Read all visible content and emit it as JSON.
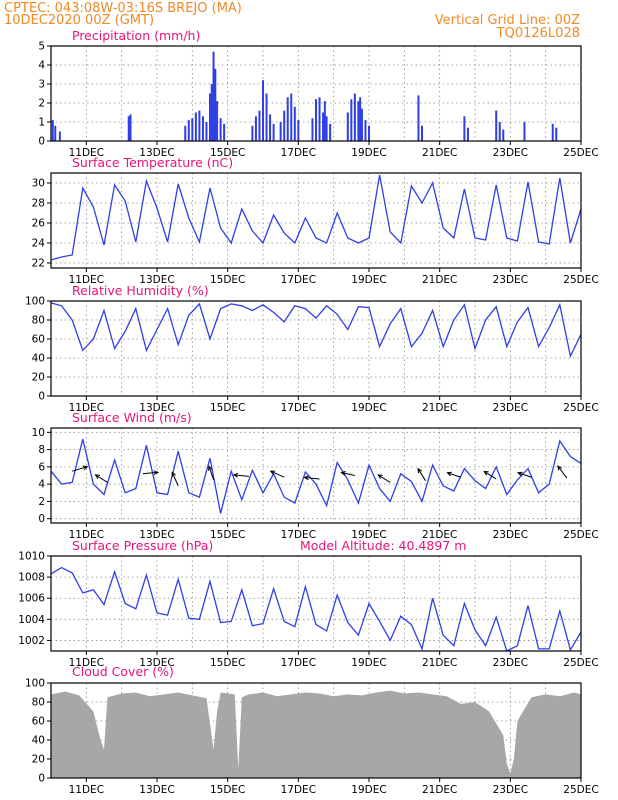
{
  "header": {
    "station": "CPTEC:  043:08W-03:16S  BREJO (MA)",
    "date": "10DEC2020 00Z (GMT)",
    "grid_note": "Vertical Grid Line: 00Z",
    "run_id": "TQ0126L028"
  },
  "x_axis": {
    "ticks": [
      "11DEC",
      "13DEC",
      "15DEC",
      "17DEC",
      "19DEC",
      "21DEC",
      "23DEC",
      "25DEC"
    ],
    "tick_days": [
      1,
      3,
      5,
      7,
      9,
      11,
      13,
      15
    ],
    "range_days": [
      0,
      15
    ]
  },
  "colors": {
    "series": "#2f3fe6",
    "cloud": "#a7a7a7",
    "title": "#e8147a",
    "header": "#f08a28"
  },
  "chart_data": [
    {
      "type": "bar",
      "title": "Precipitation (mm/h)",
      "ylim": [
        0,
        5
      ],
      "yticks": [
        "0",
        "1",
        "2",
        "3",
        "4",
        "5"
      ],
      "grid": true,
      "x_days": [
        0.05,
        0.12,
        0.25,
        2.2,
        2.25,
        3.8,
        3.9,
        4.0,
        4.1,
        4.2,
        4.3,
        4.4,
        4.5,
        4.55,
        4.6,
        4.65,
        4.7,
        4.8,
        4.9,
        5.7,
        5.8,
        5.9,
        6.0,
        6.1,
        6.2,
        6.3,
        6.5,
        6.6,
        6.7,
        6.8,
        6.9,
        7.0,
        7.4,
        7.5,
        7.6,
        7.7,
        7.75,
        7.8,
        7.9,
        8.4,
        8.5,
        8.6,
        8.7,
        8.75,
        8.8,
        8.9,
        9.0,
        10.4,
        10.5,
        11.7,
        11.8,
        12.6,
        12.7,
        12.8,
        13.4,
        14.2,
        14.3
      ],
      "values": [
        1.1,
        0.8,
        0.5,
        1.3,
        1.4,
        0.8,
        1.1,
        1.2,
        1.5,
        1.6,
        1.3,
        1.0,
        2.5,
        3.0,
        4.7,
        3.8,
        2.1,
        1.2,
        0.9,
        0.8,
        1.3,
        1.6,
        3.2,
        2.5,
        1.4,
        0.9,
        1.0,
        1.6,
        2.3,
        2.5,
        1.8,
        1.1,
        1.2,
        2.2,
        2.3,
        1.5,
        2.1,
        1.3,
        0.9,
        1.5,
        2.2,
        2.5,
        2.1,
        2.3,
        1.7,
        1.1,
        0.8,
        2.4,
        0.8,
        1.3,
        0.7,
        1.6,
        1.0,
        0.6,
        1.0,
        0.9,
        0.7
      ]
    },
    {
      "type": "line",
      "title": "Surface Temperature (nC)",
      "ylim": [
        21.5,
        31
      ],
      "yticks": [
        "22",
        "24",
        "26",
        "28",
        "30"
      ],
      "ytick_values": [
        22,
        24,
        26,
        28,
        30
      ],
      "grid": true,
      "x_days": [
        0,
        0.3,
        0.6,
        0.9,
        1.2,
        1.5,
        1.8,
        2.1,
        2.4,
        2.7,
        3.0,
        3.3,
        3.6,
        3.9,
        4.2,
        4.5,
        4.8,
        5.1,
        5.4,
        5.7,
        6.0,
        6.3,
        6.6,
        6.9,
        7.2,
        7.5,
        7.8,
        8.1,
        8.4,
        8.7,
        9.0,
        9.3,
        9.6,
        9.9,
        10.2,
        10.5,
        10.8,
        11.1,
        11.4,
        11.7,
        12.0,
        12.3,
        12.6,
        12.9,
        13.2,
        13.5,
        13.8,
        14.1,
        14.4,
        14.7,
        15.0
      ],
      "values": [
        22.3,
        22.6,
        22.8,
        29.5,
        27.6,
        23.8,
        29.8,
        28.2,
        24.1,
        30.2,
        27.5,
        24.1,
        29.9,
        26.5,
        24.1,
        29.5,
        25.5,
        24.0,
        27.4,
        25.2,
        24.0,
        26.8,
        25.0,
        24.0,
        26.5,
        24.5,
        24.0,
        27.0,
        24.5,
        24.0,
        24.5,
        30.8,
        25.1,
        24.0,
        29.7,
        28.0,
        30.0,
        25.5,
        24.5,
        29.4,
        24.5,
        24.3,
        29.8,
        24.5,
        24.2,
        30.1,
        24.1,
        23.9,
        30.5,
        24.0,
        27.4
      ]
    },
    {
      "type": "line",
      "title": "Relative Humidity (%)",
      "ylim": [
        0,
        100
      ],
      "yticks": [
        "0",
        "20",
        "40",
        "60",
        "80",
        "100"
      ],
      "ytick_values": [
        0,
        20,
        40,
        60,
        80,
        100
      ],
      "grid": true,
      "x_days": [
        0,
        0.3,
        0.6,
        0.9,
        1.2,
        1.5,
        1.8,
        2.1,
        2.4,
        2.7,
        3.0,
        3.3,
        3.6,
        3.9,
        4.2,
        4.5,
        4.8,
        5.1,
        5.4,
        5.7,
        6.0,
        6.3,
        6.6,
        6.9,
        7.2,
        7.5,
        7.8,
        8.1,
        8.4,
        8.7,
        9.0,
        9.3,
        9.6,
        9.9,
        10.2,
        10.5,
        10.8,
        11.1,
        11.4,
        11.7,
        12.0,
        12.3,
        12.6,
        12.9,
        13.2,
        13.5,
        13.8,
        14.1,
        14.4,
        14.7,
        15.0
      ],
      "values": [
        98,
        95,
        80,
        48,
        60,
        90,
        50,
        68,
        92,
        48,
        70,
        92,
        54,
        85,
        97,
        60,
        92,
        97,
        95,
        90,
        96,
        88,
        78,
        95,
        92,
        82,
        95,
        86,
        70,
        94,
        93,
        52,
        76,
        92,
        52,
        66,
        90,
        52,
        80,
        96,
        50,
        80,
        94,
        52,
        78,
        93,
        52,
        72,
        96,
        42,
        65
      ]
    },
    {
      "type": "line",
      "title": "Surface Wind (m/s)",
      "ylim": [
        -0.5,
        10.5
      ],
      "yticks": [
        "0",
        "2",
        "4",
        "6",
        "8",
        "10"
      ],
      "ytick_values": [
        0,
        2,
        4,
        6,
        8,
        10
      ],
      "grid": true,
      "x_days": [
        0,
        0.3,
        0.6,
        0.9,
        1.2,
        1.5,
        1.8,
        2.1,
        2.4,
        2.7,
        3.0,
        3.3,
        3.6,
        3.9,
        4.2,
        4.5,
        4.8,
        5.1,
        5.4,
        5.7,
        6.0,
        6.3,
        6.6,
        6.9,
        7.2,
        7.5,
        7.8,
        8.1,
        8.4,
        8.7,
        9.0,
        9.3,
        9.6,
        9.9,
        10.2,
        10.5,
        10.8,
        11.1,
        11.4,
        11.7,
        12.0,
        12.3,
        12.6,
        12.9,
        13.2,
        13.5,
        13.8,
        14.1,
        14.4,
        14.7,
        15.0
      ],
      "values": [
        5.5,
        4.0,
        4.2,
        9.2,
        4.0,
        2.8,
        6.8,
        3.0,
        3.5,
        8.5,
        3.0,
        2.8,
        7.8,
        3.0,
        2.5,
        7.0,
        0.6,
        5.5,
        2.2,
        5.6,
        3.0,
        5.2,
        2.5,
        1.8,
        5.4,
        4.0,
        1.5,
        6.5,
        4.5,
        1.8,
        6.2,
        3.5,
        2.0,
        5.2,
        4.3,
        2.0,
        6.2,
        3.8,
        3.2,
        5.8,
        4.4,
        3.5,
        6.0,
        2.8,
        4.5,
        5.8,
        3.0,
        4.0,
        9.0,
        7.2,
        6.4
      ],
      "vector_days": [
        0.6,
        1.6,
        2.6,
        3.6,
        4.6,
        5.6,
        6.6,
        7.6,
        8.6,
        9.6,
        10.6,
        11.6,
        12.6,
        13.6,
        14.6
      ],
      "vector_speed": [
        5.5,
        4.2,
        5.2,
        3.8,
        4.5,
        4.9,
        4.8,
        4.6,
        5.0,
        4.2,
        4.4,
        4.8,
        4.6,
        4.8,
        4.7
      ],
      "vector_u": [
        1.0,
        -0.8,
        1.0,
        -0.4,
        -0.3,
        -1.0,
        -0.9,
        -1.0,
        -0.9,
        -0.8,
        -0.5,
        -0.9,
        -0.8,
        -0.9,
        -0.6
      ],
      "vector_v": [
        -0.3,
        -0.5,
        -0.1,
        -0.9,
        -0.9,
        -0.1,
        -0.4,
        -0.1,
        -0.2,
        -0.5,
        -0.8,
        -0.3,
        -0.5,
        -0.3,
        -0.8
      ]
    },
    {
      "type": "line",
      "title": "Surface Pressure (hPa)",
      "annotation": "Model Altitude: 40.4897 m",
      "ylim": [
        1001,
        1010
      ],
      "yticks": [
        "1002",
        "1004",
        "1006",
        "1008",
        "1010"
      ],
      "ytick_values": [
        1002,
        1004,
        1006,
        1008,
        1010
      ],
      "grid": true,
      "x_days": [
        0,
        0.3,
        0.6,
        0.9,
        1.2,
        1.5,
        1.8,
        2.1,
        2.4,
        2.7,
        3.0,
        3.3,
        3.6,
        3.9,
        4.2,
        4.5,
        4.8,
        5.1,
        5.4,
        5.7,
        6.0,
        6.3,
        6.6,
        6.9,
        7.2,
        7.5,
        7.8,
        8.1,
        8.4,
        8.7,
        9.0,
        9.3,
        9.6,
        9.9,
        10.2,
        10.5,
        10.8,
        11.1,
        11.4,
        11.7,
        12.0,
        12.3,
        12.6,
        12.9,
        13.2,
        13.5,
        13.8,
        14.1,
        14.4,
        14.7,
        15.0
      ],
      "values": [
        1008.3,
        1008.9,
        1008.4,
        1006.5,
        1006.8,
        1005.4,
        1008.5,
        1005.5,
        1005.0,
        1008.2,
        1004.6,
        1004.4,
        1007.8,
        1004.1,
        1004.0,
        1007.6,
        1003.7,
        1003.8,
        1006.8,
        1003.4,
        1003.6,
        1006.9,
        1003.8,
        1003.3,
        1007.1,
        1003.5,
        1002.9,
        1006.3,
        1003.7,
        1002.5,
        1005.5,
        1003.8,
        1002.0,
        1004.3,
        1003.5,
        1001.2,
        1006.0,
        1002.5,
        1001.5,
        1005.5,
        1003.0,
        1001.5,
        1004.2,
        1001.0,
        1001.5,
        1005.3,
        1001.2,
        1001.2,
        1004.8,
        1001.1,
        1002.8
      ]
    },
    {
      "type": "area",
      "title": "Cloud Cover (%)",
      "ylim": [
        0,
        100
      ],
      "yticks": [
        "0",
        "20",
        "40",
        "60",
        "80",
        "100"
      ],
      "ytick_values": [
        0,
        20,
        40,
        60,
        80,
        100
      ],
      "grid": true,
      "x_days": [
        0,
        0.4,
        0.8,
        1.2,
        1.4,
        1.5,
        1.6,
        2.0,
        2.4,
        2.8,
        3.2,
        3.6,
        4.0,
        4.4,
        4.6,
        4.7,
        4.8,
        5.2,
        5.3,
        5.4,
        5.6,
        6.0,
        6.4,
        6.8,
        7.2,
        7.6,
        8.0,
        8.4,
        8.8,
        9.2,
        9.6,
        10.0,
        10.4,
        10.8,
        11.2,
        11.6,
        12.0,
        12.4,
        12.8,
        12.9,
        13.0,
        13.1,
        13.2,
        13.6,
        14.0,
        14.4,
        14.8,
        15.0
      ],
      "values": [
        88,
        91,
        87,
        70,
        40,
        30,
        85,
        89,
        90,
        86,
        88,
        90,
        87,
        84,
        30,
        70,
        90,
        88,
        10,
        85,
        88,
        90,
        86,
        88,
        90,
        89,
        86,
        88,
        87,
        90,
        92,
        89,
        90,
        88,
        86,
        78,
        80,
        70,
        45,
        15,
        5,
        20,
        60,
        85,
        88,
        86,
        90,
        88
      ]
    }
  ]
}
